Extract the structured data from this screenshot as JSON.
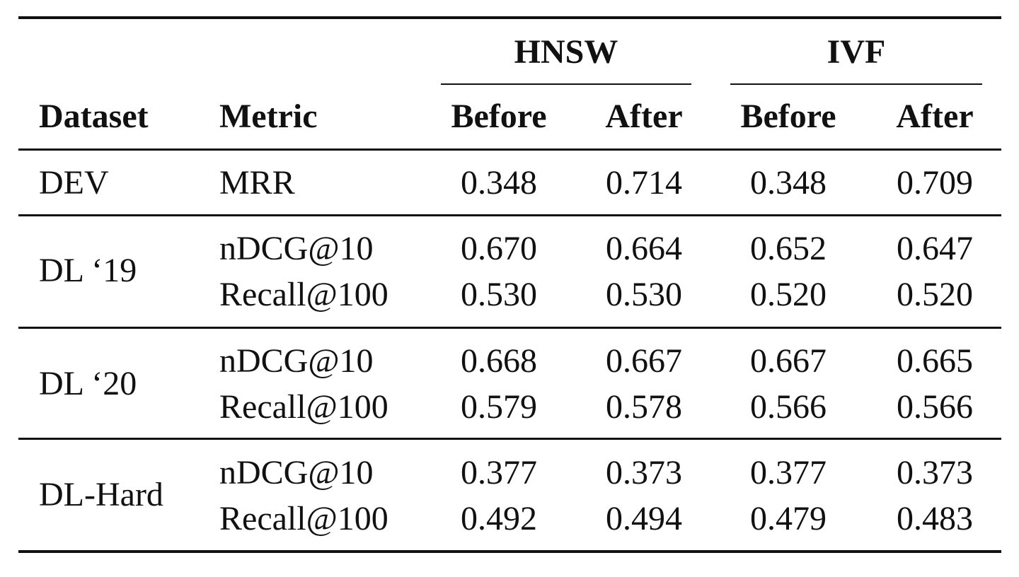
{
  "table": {
    "group_headers": [
      "HNSW",
      "IVF"
    ],
    "column_headers": {
      "dataset": "Dataset",
      "metric": "Metric",
      "hnsw_before": "Before",
      "hnsw_after": "After",
      "ivf_before": "Before",
      "ivf_after": "After"
    },
    "rows": [
      {
        "dataset": "DEV",
        "metric": "MRR",
        "hnsw_before": "0.348",
        "hnsw_after": "0.714",
        "ivf_before": "0.348",
        "ivf_after": "0.709"
      },
      {
        "dataset": "DL ‘19",
        "metric": "nDCG@10",
        "hnsw_before": "0.670",
        "hnsw_after": "0.664",
        "ivf_before": "0.652",
        "ivf_after": "0.647"
      },
      {
        "dataset": "",
        "metric": "Recall@100",
        "hnsw_before": "0.530",
        "hnsw_after": "0.530",
        "ivf_before": "0.520",
        "ivf_after": "0.520"
      },
      {
        "dataset": "DL ‘20",
        "metric": "nDCG@10",
        "hnsw_before": "0.668",
        "hnsw_after": "0.667",
        "ivf_before": "0.667",
        "ivf_after": "0.665"
      },
      {
        "dataset": "",
        "metric": "Recall@100",
        "hnsw_before": "0.579",
        "hnsw_after": "0.578",
        "ivf_before": "0.566",
        "ivf_after": "0.566"
      },
      {
        "dataset": "DL-Hard",
        "metric": "nDCG@10",
        "hnsw_before": "0.377",
        "hnsw_after": "0.373",
        "ivf_before": "0.377",
        "ivf_after": "0.373"
      },
      {
        "dataset": "",
        "metric": "Recall@100",
        "hnsw_before": "0.492",
        "hnsw_after": "0.494",
        "ivf_before": "0.479",
        "ivf_after": "0.483"
      }
    ]
  }
}
